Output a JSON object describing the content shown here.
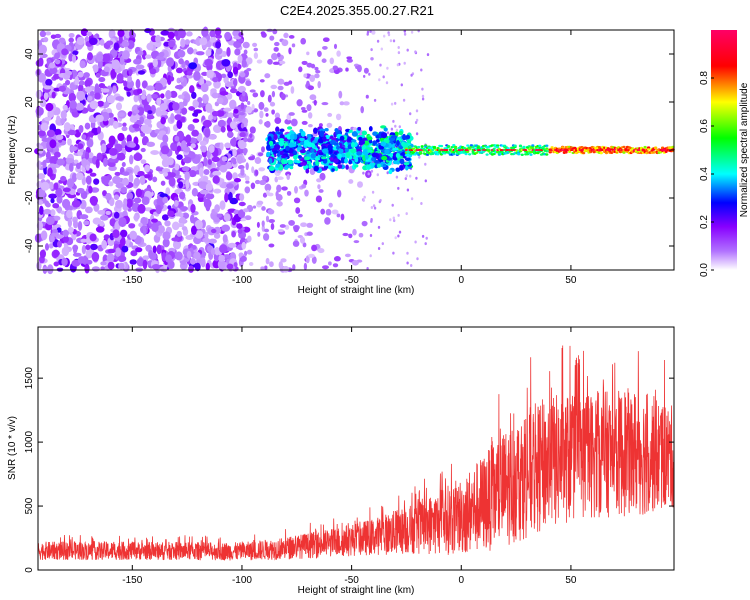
{
  "title": "C2E4.2025.355.00.27.R21",
  "chart_data": [
    {
      "type": "heatmap",
      "name": "spectrogram",
      "xlabel": "Height of straight line (km)",
      "ylabel": "Frequency (Hz)",
      "xlim": [
        -193,
        97
      ],
      "ylim": [
        -50,
        50
      ],
      "xticks": [
        -150,
        -100,
        -50,
        0,
        50
      ],
      "xtick_labels": [
        "-150",
        "-100",
        "-50",
        "0",
        "50"
      ],
      "yticks": [
        -40,
        -20,
        0,
        20,
        40
      ],
      "ytick_labels": [
        "-40",
        "-20",
        "0",
        "20",
        "40"
      ],
      "colorbar": {
        "label": "Normalized spectral amplitude",
        "range": [
          0,
          1
        ],
        "ticks": [
          0.0,
          0.2,
          0.4,
          0.6,
          0.8
        ],
        "tick_labels": [
          "0.0",
          "0.2",
          "0.4",
          "0.6",
          "0.8"
        ],
        "colors": [
          "#ffffff",
          "#8800ff",
          "#0000ff",
          "#00ffff",
          "#00ff00",
          "#ffff00",
          "#ff0000",
          "#ff0066"
        ]
      },
      "description_regions": [
        {
          "x_range": [
            -193,
            -100
          ],
          "freq_spread": 50,
          "amplitude": 0.12
        },
        {
          "x_range": [
            -100,
            -45
          ],
          "freq_spread": 50,
          "amplitude": 0.06
        },
        {
          "x_range": [
            -85,
            -25
          ],
          "freq_spread": 8,
          "amplitude": 0.3
        },
        {
          "x_range": [
            -25,
            97
          ],
          "freq_spread": 2,
          "amplitude": 0.85
        }
      ]
    },
    {
      "type": "line",
      "name": "snr",
      "xlabel": "Height of straight line (km)",
      "ylabel": "SNR (10 * v/v)",
      "xlim": [
        -193,
        97
      ],
      "ylim": [
        0,
        1900
      ],
      "xticks": [
        -150,
        -100,
        -50,
        0,
        50
      ],
      "xtick_labels": [
        "-150",
        "-100",
        "-50",
        "0",
        "50"
      ],
      "yticks": [
        0,
        500,
        1000,
        1500
      ],
      "ytick_labels": [
        "0",
        "500",
        "1000",
        "1500"
      ],
      "series_color": "#ee3333",
      "envelope": {
        "x": [
          -193,
          -150,
          -100,
          -80,
          -60,
          -40,
          -20,
          0,
          10,
          20,
          30,
          40,
          50,
          60,
          70,
          80,
          90,
          97
        ],
        "mean": [
          150,
          150,
          145,
          170,
          210,
          260,
          330,
          420,
          520,
          640,
          760,
          840,
          880,
          900,
          910,
          920,
          900,
          880
        ],
        "spread": [
          90,
          90,
          90,
          110,
          140,
          180,
          260,
          380,
          480,
          580,
          640,
          660,
          640,
          620,
          620,
          640,
          560,
          500
        ]
      }
    }
  ]
}
